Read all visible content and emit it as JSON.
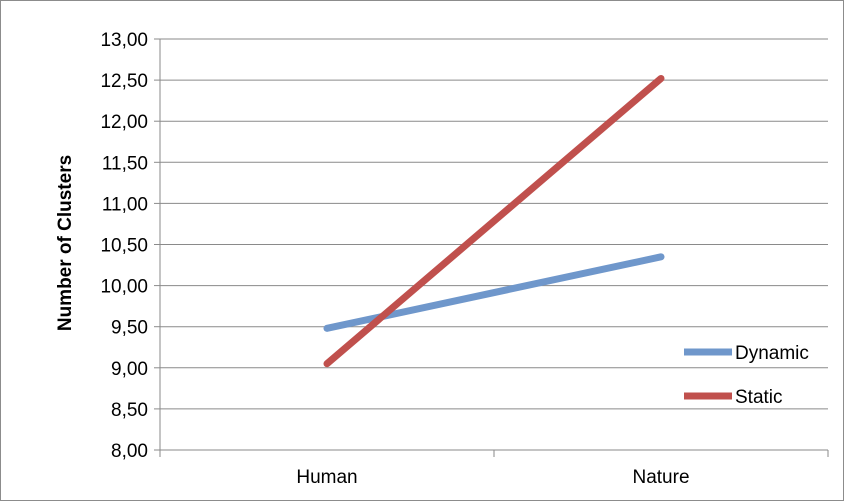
{
  "chart_data": {
    "type": "line",
    "title": "",
    "xlabel": "",
    "ylabel": "Number of Clusters",
    "categories": [
      "Human",
      "Nature"
    ],
    "series": [
      {
        "name": "Dynamic",
        "values": [
          9.48,
          10.35
        ],
        "color": "#6f97cb"
      },
      {
        "name": "Static",
        "values": [
          9.05,
          12.52
        ],
        "color": "#c0504d"
      }
    ],
    "ylim": [
      8.0,
      13.0
    ],
    "ytick_step": 0.5,
    "ytick_labels": [
      "8,00",
      "8,50",
      "9,00",
      "9,50",
      "10,00",
      "10,50",
      "11,00",
      "11,50",
      "12,00",
      "12,50",
      "13,00"
    ],
    "grid": true,
    "legend_position": "right"
  }
}
